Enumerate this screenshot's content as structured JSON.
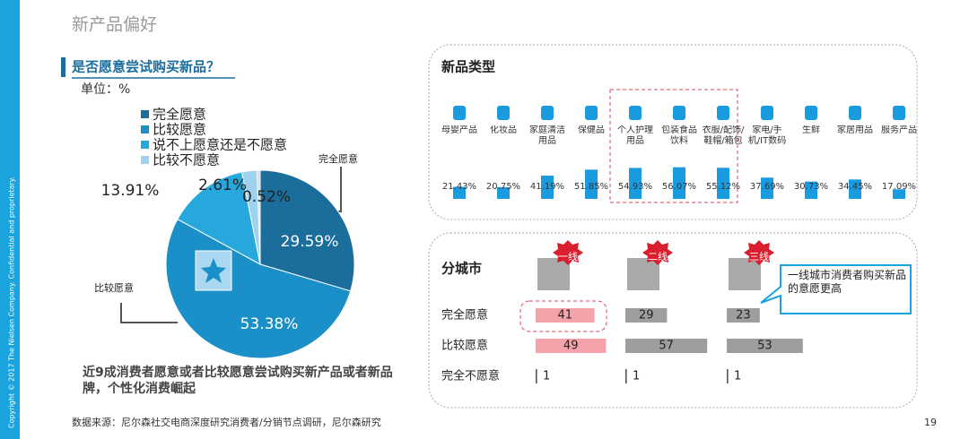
{
  "page": {
    "title": "新产品偏好",
    "source": "数据来源：尼尔森社交电商深度研究消费者/分销节点调研，尼尔森研究",
    "page_number": "19",
    "copyright": "Copyright © 2017 The Nielsen Company. Confidential and proprietary."
  },
  "chart_data": [
    {
      "type": "pie",
      "title": "是否愿意尝试购买新品？",
      "subtitle": "单位：%",
      "categories": [
        "完全愿意",
        "比较愿意",
        "说不上愿意还是不愿意",
        "比较不愿意",
        null
      ],
      "values": [
        29.59,
        53.38,
        13.91,
        2.61,
        0.52
      ],
      "value_labels": [
        "29.59%",
        "53.38%",
        "13.91%",
        "2.61%",
        "0.52%"
      ],
      "colors": [
        "#1b6d9c",
        "#1b8fc7",
        "#27a8dc",
        "#9ed2ee",
        "#d9d9d9"
      ],
      "annotations": [
        "完全愿意",
        "比较愿意"
      ],
      "note": "近9成消费者愿意或者比较愿意尝试购买新产品或者新品牌，个性化消费崛起"
    },
    {
      "type": "bar",
      "title": "新品类型",
      "categories": [
        "母婴产品",
        "化妆品",
        "家庭清洁用品",
        "保健品",
        "个人护理用品",
        "包装食品饮料",
        "衣服/配饰/鞋帽/箱包",
        "家电/手机/IT数码",
        "生鲜",
        "家居用品",
        "服务产品"
      ],
      "values": [
        21.43,
        20.75,
        41.19,
        51.85,
        54.93,
        56.07,
        55.12,
        37.69,
        30.73,
        34.45,
        17.09
      ],
      "value_labels": [
        "21.43%",
        "20.75%",
        "41.19%",
        "51.85%",
        "54.93%",
        "56.07%",
        "55.12%",
        "37.69%",
        "30.73%",
        "34.45%",
        "17.09%"
      ],
      "color": "#1a9be0"
    },
    {
      "type": "hbar",
      "title": "分城市",
      "categories": [
        "完全愿意",
        "比较愿意",
        "完全不愿意"
      ],
      "series": [
        {
          "name": "一线",
          "color": "#f4a3ab",
          "values": [
            41,
            49,
            1
          ]
        },
        {
          "name": "二线",
          "color": "#9e9e9e",
          "values": [
            29,
            57,
            1
          ]
        },
        {
          "name": "三线",
          "color": "#9e9e9e",
          "values": [
            23,
            53,
            1
          ]
        }
      ],
      "annotation": "一线城市消费者购买新品的意愿更高"
    }
  ]
}
